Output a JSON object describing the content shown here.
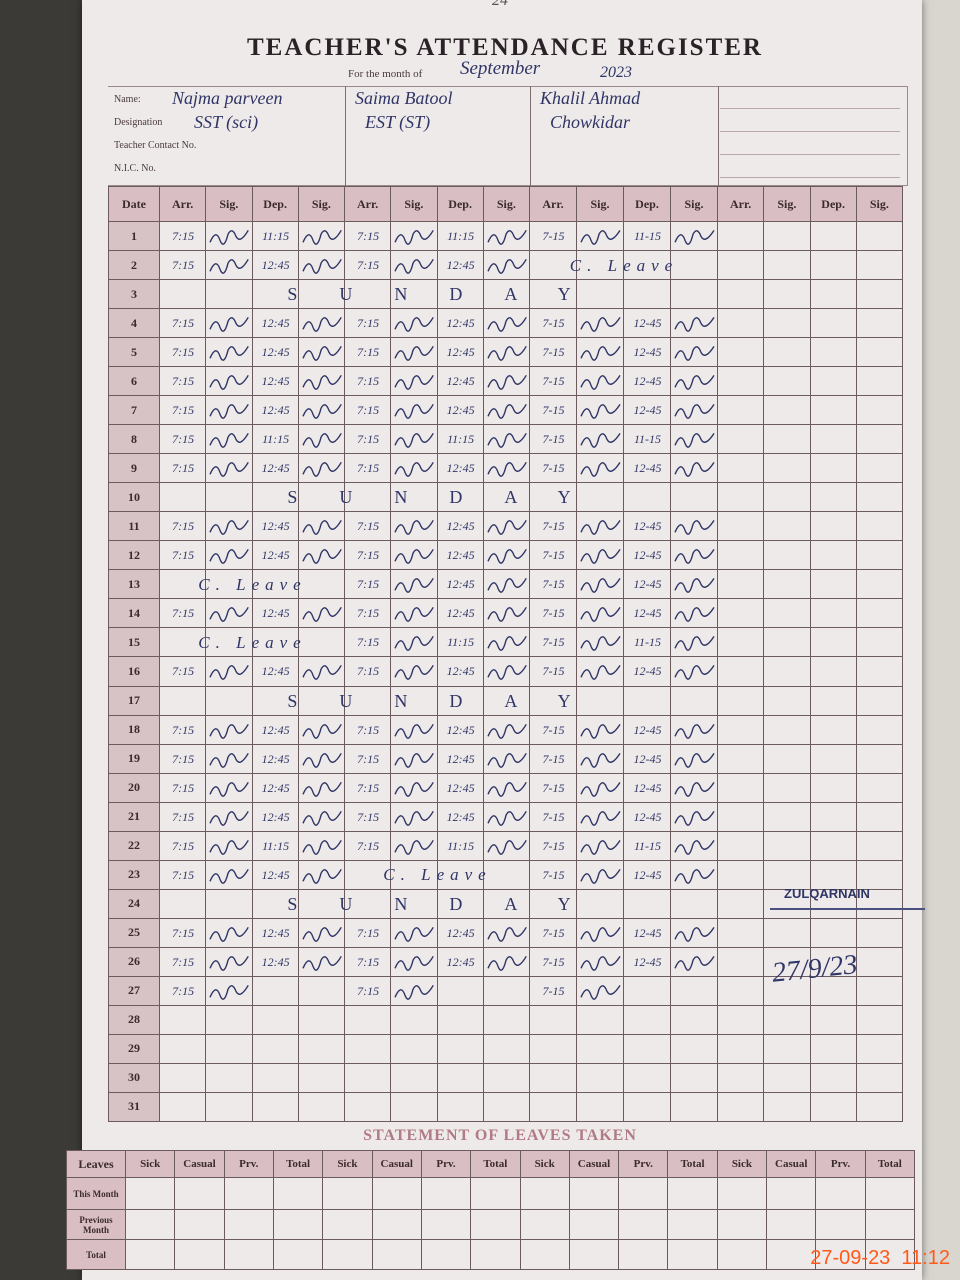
{
  "header": {
    "page_number": "24",
    "title": "TEACHER'S ATTENDANCE REGISTER",
    "month_label": "For the month of",
    "month": "September",
    "year": "2023"
  },
  "info_labels": [
    "Name:",
    "Designation",
    "Teacher Contact No.",
    "N.I.C. No."
  ],
  "teachers": [
    {
      "name": "Najma parveen",
      "designation": "SST (sci)"
    },
    {
      "name": "Saima Batool",
      "designation": "EST (ST)"
    },
    {
      "name": "Khalil Ahmad",
      "designation": "Chowkidar"
    }
  ],
  "columns": {
    "date": "Date",
    "arrival": "Arr.",
    "signature": "Sig.",
    "departure": "Dep."
  },
  "rows": [
    {
      "date": "1",
      "entries": [
        {
          "arr": "7:15",
          "dep": "11:15"
        },
        {
          "arr": "7:15",
          "dep": "11:15"
        },
        {
          "arr": "7-15",
          "dep": "11-15"
        }
      ]
    },
    {
      "date": "2",
      "entries": [
        {
          "arr": "7:15",
          "dep": "12:45"
        },
        {
          "arr": "7:15",
          "dep": "12:45"
        },
        "C. Leave"
      ]
    },
    {
      "date": "3",
      "note": "SUNDAY"
    },
    {
      "date": "4",
      "entries": [
        {
          "arr": "7:15",
          "dep": "12:45"
        },
        {
          "arr": "7:15",
          "dep": "12:45"
        },
        {
          "arr": "7-15",
          "dep": "12-45"
        }
      ]
    },
    {
      "date": "5",
      "entries": [
        {
          "arr": "7:15",
          "dep": "12:45"
        },
        {
          "arr": "7:15",
          "dep": "12:45"
        },
        {
          "arr": "7-15",
          "dep": "12-45"
        }
      ]
    },
    {
      "date": "6",
      "entries": [
        {
          "arr": "7:15",
          "dep": "12:45"
        },
        {
          "arr": "7:15",
          "dep": "12:45"
        },
        {
          "arr": "7-15",
          "dep": "12-45"
        }
      ]
    },
    {
      "date": "7",
      "entries": [
        {
          "arr": "7:15",
          "dep": "12:45"
        },
        {
          "arr": "7:15",
          "dep": "12:45"
        },
        {
          "arr": "7-15",
          "dep": "12-45"
        }
      ]
    },
    {
      "date": "8",
      "entries": [
        {
          "arr": "7:15",
          "dep": "11:15"
        },
        {
          "arr": "7:15",
          "dep": "11:15"
        },
        {
          "arr": "7-15",
          "dep": "11-15"
        }
      ]
    },
    {
      "date": "9",
      "entries": [
        {
          "arr": "7:15",
          "dep": "12:45"
        },
        {
          "arr": "7:15",
          "dep": "12:45"
        },
        {
          "arr": "7-15",
          "dep": "12-45"
        }
      ]
    },
    {
      "date": "10",
      "note": "SUNDAY"
    },
    {
      "date": "11",
      "entries": [
        {
          "arr": "7:15",
          "dep": "12:45"
        },
        {
          "arr": "7:15",
          "dep": "12:45"
        },
        {
          "arr": "7-15",
          "dep": "12-45"
        }
      ]
    },
    {
      "date": "12",
      "entries": [
        {
          "arr": "7:15",
          "dep": "12:45"
        },
        {
          "arr": "7:15",
          "dep": "12:45"
        },
        {
          "arr": "7-15",
          "dep": "12-45"
        }
      ]
    },
    {
      "date": "13",
      "entries": [
        "C. Leave",
        {
          "arr": "7:15",
          "dep": "12:45"
        },
        {
          "arr": "7-15",
          "dep": "12-45"
        }
      ]
    },
    {
      "date": "14",
      "entries": [
        {
          "arr": "7:15",
          "dep": "12:45"
        },
        {
          "arr": "7:15",
          "dep": "12:45"
        },
        {
          "arr": "7-15",
          "dep": "12-45"
        }
      ]
    },
    {
      "date": "15",
      "entries": [
        "C. Leave",
        {
          "arr": "7:15",
          "dep": "11:15"
        },
        {
          "arr": "7-15",
          "dep": "11-15"
        }
      ]
    },
    {
      "date": "16",
      "entries": [
        {
          "arr": "7:15",
          "dep": "12:45"
        },
        {
          "arr": "7:15",
          "dep": "12:45"
        },
        {
          "arr": "7-15",
          "dep": "12-45"
        }
      ]
    },
    {
      "date": "17",
      "note": "SUNDAY"
    },
    {
      "date": "18",
      "entries": [
        {
          "arr": "7:15",
          "dep": "12:45"
        },
        {
          "arr": "7:15",
          "dep": "12:45"
        },
        {
          "arr": "7-15",
          "dep": "12-45"
        }
      ]
    },
    {
      "date": "19",
      "entries": [
        {
          "arr": "7:15",
          "dep": "12:45"
        },
        {
          "arr": "7:15",
          "dep": "12:45"
        },
        {
          "arr": "7-15",
          "dep": "12-45"
        }
      ]
    },
    {
      "date": "20",
      "entries": [
        {
          "arr": "7:15",
          "dep": "12:45"
        },
        {
          "arr": "7:15",
          "dep": "12:45"
        },
        {
          "arr": "7-15",
          "dep": "12-45"
        }
      ]
    },
    {
      "date": "21",
      "entries": [
        {
          "arr": "7:15",
          "dep": "12:45"
        },
        {
          "arr": "7:15",
          "dep": "12:45"
        },
        {
          "arr": "7-15",
          "dep": "12-45"
        }
      ]
    },
    {
      "date": "22",
      "entries": [
        {
          "arr": "7:15",
          "dep": "11:15"
        },
        {
          "arr": "7:15",
          "dep": "11:15"
        },
        {
          "arr": "7-15",
          "dep": "11-15"
        }
      ]
    },
    {
      "date": "23",
      "entries": [
        {
          "arr": "7:15",
          "dep": "12:45"
        },
        "C. Leave",
        {
          "arr": "7-15",
          "dep": "12-45"
        }
      ]
    },
    {
      "date": "24",
      "note": "SUNDAY"
    },
    {
      "date": "25",
      "entries": [
        {
          "arr": "7:15",
          "dep": "12:45"
        },
        {
          "arr": "7:15",
          "dep": "12:45"
        },
        {
          "arr": "7-15",
          "dep": "12-45"
        }
      ]
    },
    {
      "date": "26",
      "entries": [
        {
          "arr": "7:15",
          "dep": "12:45"
        },
        {
          "arr": "7:15",
          "dep": "12:45"
        },
        {
          "arr": "7-15",
          "dep": "12-45"
        }
      ]
    },
    {
      "date": "27",
      "entries": [
        {
          "arr": "7:15"
        },
        {
          "arr": "7:15"
        },
        {
          "arr": "7-15"
        }
      ]
    },
    {
      "date": "28"
    },
    {
      "date": "29"
    },
    {
      "date": "30"
    },
    {
      "date": "31"
    }
  ],
  "leaves": {
    "title": "STATEMENT OF LEAVES TAKEN",
    "corner": "Leaves",
    "columns": [
      "Sick",
      "Casual",
      "Prv.",
      "Total"
    ],
    "rows": [
      "This Month",
      "Previous Month",
      "Total"
    ]
  },
  "stamp": {
    "name": "ZULQARNAIN",
    "date": "27/9/23"
  },
  "timestamp": "27-09-23  11:12"
}
